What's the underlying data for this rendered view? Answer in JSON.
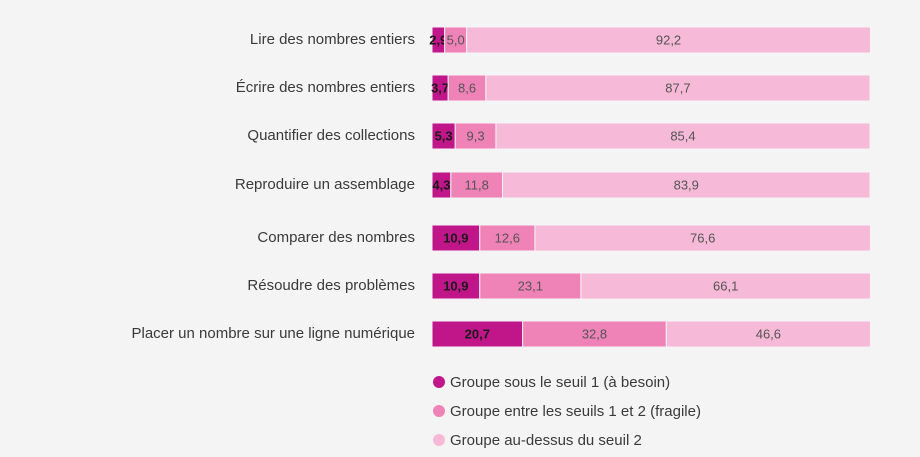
{
  "chart_data": {
    "type": "bar",
    "orientation": "horizontal",
    "stacked": true,
    "categories": [
      "Lire des nombres entiers",
      "Écrire des nombres entiers",
      "Quantifier des collections",
      "Reproduire un assemblage",
      "Comparer des nombres",
      "Résoudre des problèmes",
      "Placer un nombre sur une ligne numérique"
    ],
    "series": [
      {
        "name": "Groupe sous le seuil 1 (à besoin)",
        "color": "#c0168a",
        "values": [
          2.9,
          3.7,
          5.3,
          4.3,
          10.9,
          10.9,
          20.7
        ],
        "value_labels": [
          "2,9",
          "3,7",
          "5,3",
          "4,3",
          "10,9",
          "10,9",
          "20,7"
        ]
      },
      {
        "name": "Groupe entre les seuils 1 et 2 (fragile)",
        "color": "#ef82b7",
        "values": [
          5.0,
          8.6,
          9.3,
          11.8,
          12.6,
          23.1,
          32.8
        ],
        "value_labels": [
          "5,0",
          "8,6",
          "9,3",
          "11,8",
          "12,6",
          "23,1",
          "32,8"
        ]
      },
      {
        "name": "Groupe au-dessus du seuil 2",
        "color": "#f6b9d7",
        "values": [
          92.2,
          87.7,
          85.4,
          83.9,
          76.6,
          66.1,
          46.6
        ],
        "value_labels": [
          "92,2",
          "87,7",
          "85,4",
          "83,9",
          "76,6",
          "66,1",
          "46,6"
        ]
      }
    ]
  }
}
